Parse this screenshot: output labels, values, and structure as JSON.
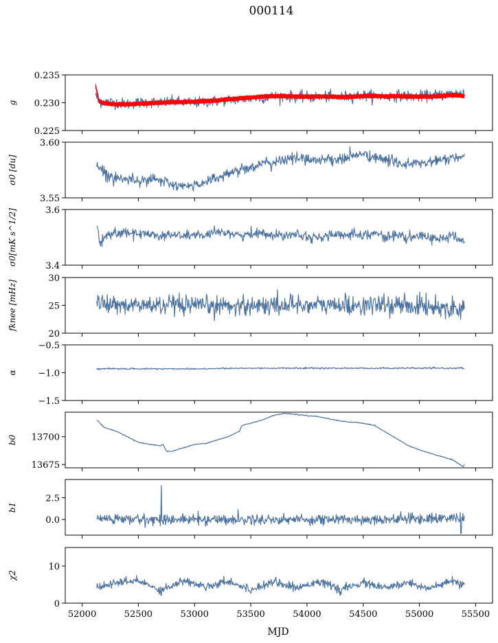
{
  "figure": {
    "title": "000114",
    "xlabel": "MJD"
  },
  "colors": {
    "series": "#4c72a0",
    "overlay": "#ff0000",
    "axes": "#000000",
    "background": "#ffffff"
  },
  "chart_data": [
    {
      "type": "line",
      "ylabel": "g",
      "ylim": [
        0.225,
        0.235
      ],
      "yticks": [
        0.225,
        0.23,
        0.235
      ],
      "yticklabels": [
        "0.225",
        "0.230",
        "0.235"
      ],
      "xlim": [
        51850,
        55650
      ],
      "series": [
        {
          "color": "#4c72a0",
          "style": "noisy",
          "x": [
            52120,
            52150,
            52200,
            52300,
            52400,
            52500,
            52600,
            52700,
            52800,
            52900,
            53000,
            53100,
            53200,
            53300,
            53400,
            53500,
            53600,
            53700,
            53800,
            53900,
            54000,
            54100,
            54200,
            54300,
            54400,
            54500,
            54600,
            54700,
            54800,
            54900,
            55000,
            55100,
            55200,
            55300,
            55400
          ],
          "y": [
            0.2315,
            0.23,
            0.2302,
            0.23,
            0.2298,
            0.23,
            0.2301,
            0.23,
            0.2302,
            0.2301,
            0.23,
            0.2302,
            0.2303,
            0.2305,
            0.2306,
            0.2308,
            0.2309,
            0.2311,
            0.2312,
            0.2311,
            0.231,
            0.231,
            0.2311,
            0.231,
            0.2312,
            0.2313,
            0.2312,
            0.2311,
            0.2313,
            0.2312,
            0.2311,
            0.2313,
            0.2314,
            0.2316,
            0.2318
          ],
          "noise": 0.0009
        },
        {
          "color": "#ff0000",
          "style": "band",
          "x": [
            52120,
            52150,
            52200,
            52300,
            52400,
            52500,
            52600,
            52700,
            52800,
            52900,
            53000,
            53100,
            53200,
            53300,
            53400,
            53500,
            53600,
            53700,
            53800,
            53900,
            54000,
            54100,
            54200,
            54300,
            54400,
            54500,
            54600,
            54700,
            54800,
            54900,
            55000,
            55100,
            55200,
            55300,
            55400
          ],
          "y": [
            0.233,
            0.2303,
            0.2299,
            0.2297,
            0.2297,
            0.2298,
            0.2299,
            0.23,
            0.2301,
            0.2301,
            0.2302,
            0.2303,
            0.2304,
            0.2306,
            0.2308,
            0.2309,
            0.2311,
            0.2312,
            0.2312,
            0.2311,
            0.2311,
            0.2311,
            0.2311,
            0.231,
            0.2311,
            0.2312,
            0.2312,
            0.2311,
            0.2312,
            0.2311,
            0.2311,
            0.2311,
            0.2312,
            0.2314,
            0.2312
          ],
          "noise": 0.0004
        }
      ]
    },
    {
      "type": "line",
      "ylabel": "σ0 [du]",
      "ylim": [
        3.55,
        3.6
      ],
      "yticks": [
        3.55,
        3.6
      ],
      "yticklabels": [
        "3.55",
        "3.60"
      ],
      "xlim": [
        51850,
        55650
      ],
      "series": [
        {
          "color": "#4c72a0",
          "style": "noisy",
          "x": [
            52130,
            52200,
            52300,
            52400,
            52500,
            52600,
            52700,
            52800,
            52900,
            53000,
            53100,
            53200,
            53300,
            53400,
            53500,
            53600,
            53700,
            53800,
            53900,
            54000,
            54100,
            54200,
            54300,
            54400,
            54500,
            54600,
            54700,
            54800,
            54900,
            55000,
            55100,
            55200,
            55300,
            55400
          ],
          "y": [
            3.58,
            3.572,
            3.568,
            3.567,
            3.566,
            3.567,
            3.565,
            3.562,
            3.56,
            3.561,
            3.565,
            3.568,
            3.572,
            3.575,
            3.578,
            3.58,
            3.582,
            3.584,
            3.586,
            3.585,
            3.584,
            3.585,
            3.584,
            3.588,
            3.589,
            3.586,
            3.584,
            3.582,
            3.58,
            3.581,
            3.582,
            3.584,
            3.586,
            3.586
          ],
          "noise": 0.0045
        }
      ]
    },
    {
      "type": "line",
      "ylabel": "σ0[mK s^1/2]",
      "ylim": [
        3.4,
        3.6
      ],
      "yticks": [
        3.4,
        3.6
      ],
      "yticklabels": [
        "3.4",
        "3.6"
      ],
      "xlim": [
        51850,
        55650
      ],
      "series": [
        {
          "color": "#4c72a0",
          "style": "noisy",
          "x": [
            52130,
            52160,
            52200,
            52300,
            52400,
            52500,
            52600,
            52700,
            52800,
            52900,
            53000,
            53100,
            53200,
            53300,
            53400,
            53500,
            53600,
            53700,
            53800,
            53900,
            54000,
            54100,
            54200,
            54300,
            54400,
            54500,
            54600,
            54700,
            54800,
            54900,
            55000,
            55100,
            55200,
            55300,
            55400
          ],
          "y": [
            3.54,
            3.47,
            3.505,
            3.515,
            3.52,
            3.51,
            3.515,
            3.505,
            3.51,
            3.505,
            3.51,
            3.505,
            3.515,
            3.52,
            3.505,
            3.51,
            3.52,
            3.505,
            3.51,
            3.515,
            3.505,
            3.495,
            3.51,
            3.505,
            3.515,
            3.51,
            3.515,
            3.5,
            3.51,
            3.495,
            3.505,
            3.5,
            3.495,
            3.505,
            3.485
          ],
          "noise": 0.016
        }
      ]
    },
    {
      "type": "line",
      "ylabel": "fknee [mHz]",
      "ylim": [
        20,
        30
      ],
      "yticks": [
        20,
        25,
        30
      ],
      "yticklabels": [
        "20",
        "25",
        "30"
      ],
      "xlim": [
        51850,
        55650
      ],
      "series": [
        {
          "color": "#4c72a0",
          "style": "noisy",
          "x": [
            52130,
            52300,
            52500,
            52700,
            52900,
            53100,
            53300,
            53500,
            53700,
            53900,
            54100,
            54300,
            54500,
            54700,
            54900,
            55100,
            55300,
            55400
          ],
          "y": [
            25.5,
            25.0,
            25.0,
            25.0,
            24.8,
            24.8,
            25.0,
            25.0,
            25.0,
            25.2,
            25.0,
            25.0,
            25.0,
            25.0,
            25.0,
            24.8,
            24.5,
            24.5
          ],
          "noise": 1.6
        }
      ]
    },
    {
      "type": "line",
      "ylabel": "α",
      "ylim": [
        -1.5,
        -0.5
      ],
      "yticks": [
        -1.5,
        -1.0,
        -0.5
      ],
      "yticklabels": [
        "−1.5",
        "−1.0",
        "−0.5"
      ],
      "xlim": [
        51850,
        55650
      ],
      "series": [
        {
          "color": "#4c72a0",
          "style": "noisy",
          "x": [
            52130,
            52500,
            53000,
            53500,
            54000,
            54500,
            55000,
            55400
          ],
          "y": [
            -0.93,
            -0.93,
            -0.93,
            -0.92,
            -0.92,
            -0.92,
            -0.92,
            -0.92
          ],
          "noise": 0.012
        }
      ]
    },
    {
      "type": "line",
      "ylabel": "b0",
      "ylim": [
        13672,
        13722
      ],
      "yticks": [
        13675,
        13700
      ],
      "yticklabels": [
        "13675",
        "13700"
      ],
      "xlim": [
        51850,
        55650
      ],
      "series": [
        {
          "color": "#4c72a0",
          "style": "noisy",
          "x": [
            52130,
            52200,
            52300,
            52400,
            52500,
            52600,
            52700,
            52720,
            52750,
            52800,
            52900,
            53000,
            53100,
            53200,
            53300,
            53400,
            53420,
            53500,
            53600,
            53700,
            53800,
            53900,
            54000,
            54100,
            54200,
            54300,
            54400,
            54500,
            54600,
            54700,
            54800,
            54900,
            55000,
            55100,
            55200,
            55300,
            55390,
            55400
          ],
          "y": [
            13715,
            13708,
            13705,
            13700,
            13695,
            13693,
            13692,
            13693,
            13687,
            13687,
            13690,
            13693,
            13694,
            13697,
            13700,
            13705,
            13710,
            13712,
            13715,
            13719,
            13721,
            13720,
            13719,
            13718,
            13716,
            13714,
            13713,
            13712,
            13710,
            13704,
            13698,
            13692,
            13688,
            13685,
            13682,
            13679,
            13673,
            13675
          ],
          "noise": 0.35
        }
      ]
    },
    {
      "type": "line",
      "ylabel": "b1",
      "ylim": [
        -1.8,
        4.6
      ],
      "yticks": [
        0.0,
        2.5
      ],
      "yticklabels": [
        "0.0",
        "2.5"
      ],
      "xlim": [
        51850,
        55650
      ],
      "series": [
        {
          "color": "#4c72a0",
          "style": "noisy",
          "x": [
            52130,
            52500,
            53000,
            53500,
            54000,
            54500,
            55000,
            55400
          ],
          "y": [
            0.1,
            0.0,
            0.0,
            0.0,
            0.0,
            0.0,
            0.1,
            0.2
          ],
          "noise": 0.55,
          "spikes": [
            [
              52705,
              3.9
            ],
            [
              55370,
              -1.6
            ]
          ]
        }
      ]
    },
    {
      "type": "line",
      "ylabel": "χ2",
      "ylim": [
        0,
        15
      ],
      "yticks": [
        0,
        10
      ],
      "yticklabels": [
        "0",
        "10"
      ],
      "xlim": [
        51850,
        55650
      ],
      "xticks": [
        52000,
        52500,
        53000,
        53500,
        54000,
        54500,
        55000,
        55500
      ],
      "xticklabels": [
        "52000",
        "52500",
        "53000",
        "53500",
        "54000",
        "54500",
        "55000",
        "55500"
      ],
      "series": [
        {
          "color": "#4c72a0",
          "style": "noisy",
          "x": [
            52130,
            52300,
            52500,
            52700,
            52900,
            53100,
            53300,
            53500,
            53700,
            53900,
            54100,
            54300,
            54500,
            54700,
            54900,
            55100,
            55300,
            55400
          ],
          "y": [
            4.0,
            5.5,
            6.0,
            3.5,
            6.0,
            4.5,
            6.0,
            3.5,
            6.0,
            4.0,
            6.0,
            3.5,
            5.5,
            4.0,
            5.5,
            4.0,
            6.0,
            4.5
          ],
          "noise": 1.0
        }
      ]
    }
  ]
}
